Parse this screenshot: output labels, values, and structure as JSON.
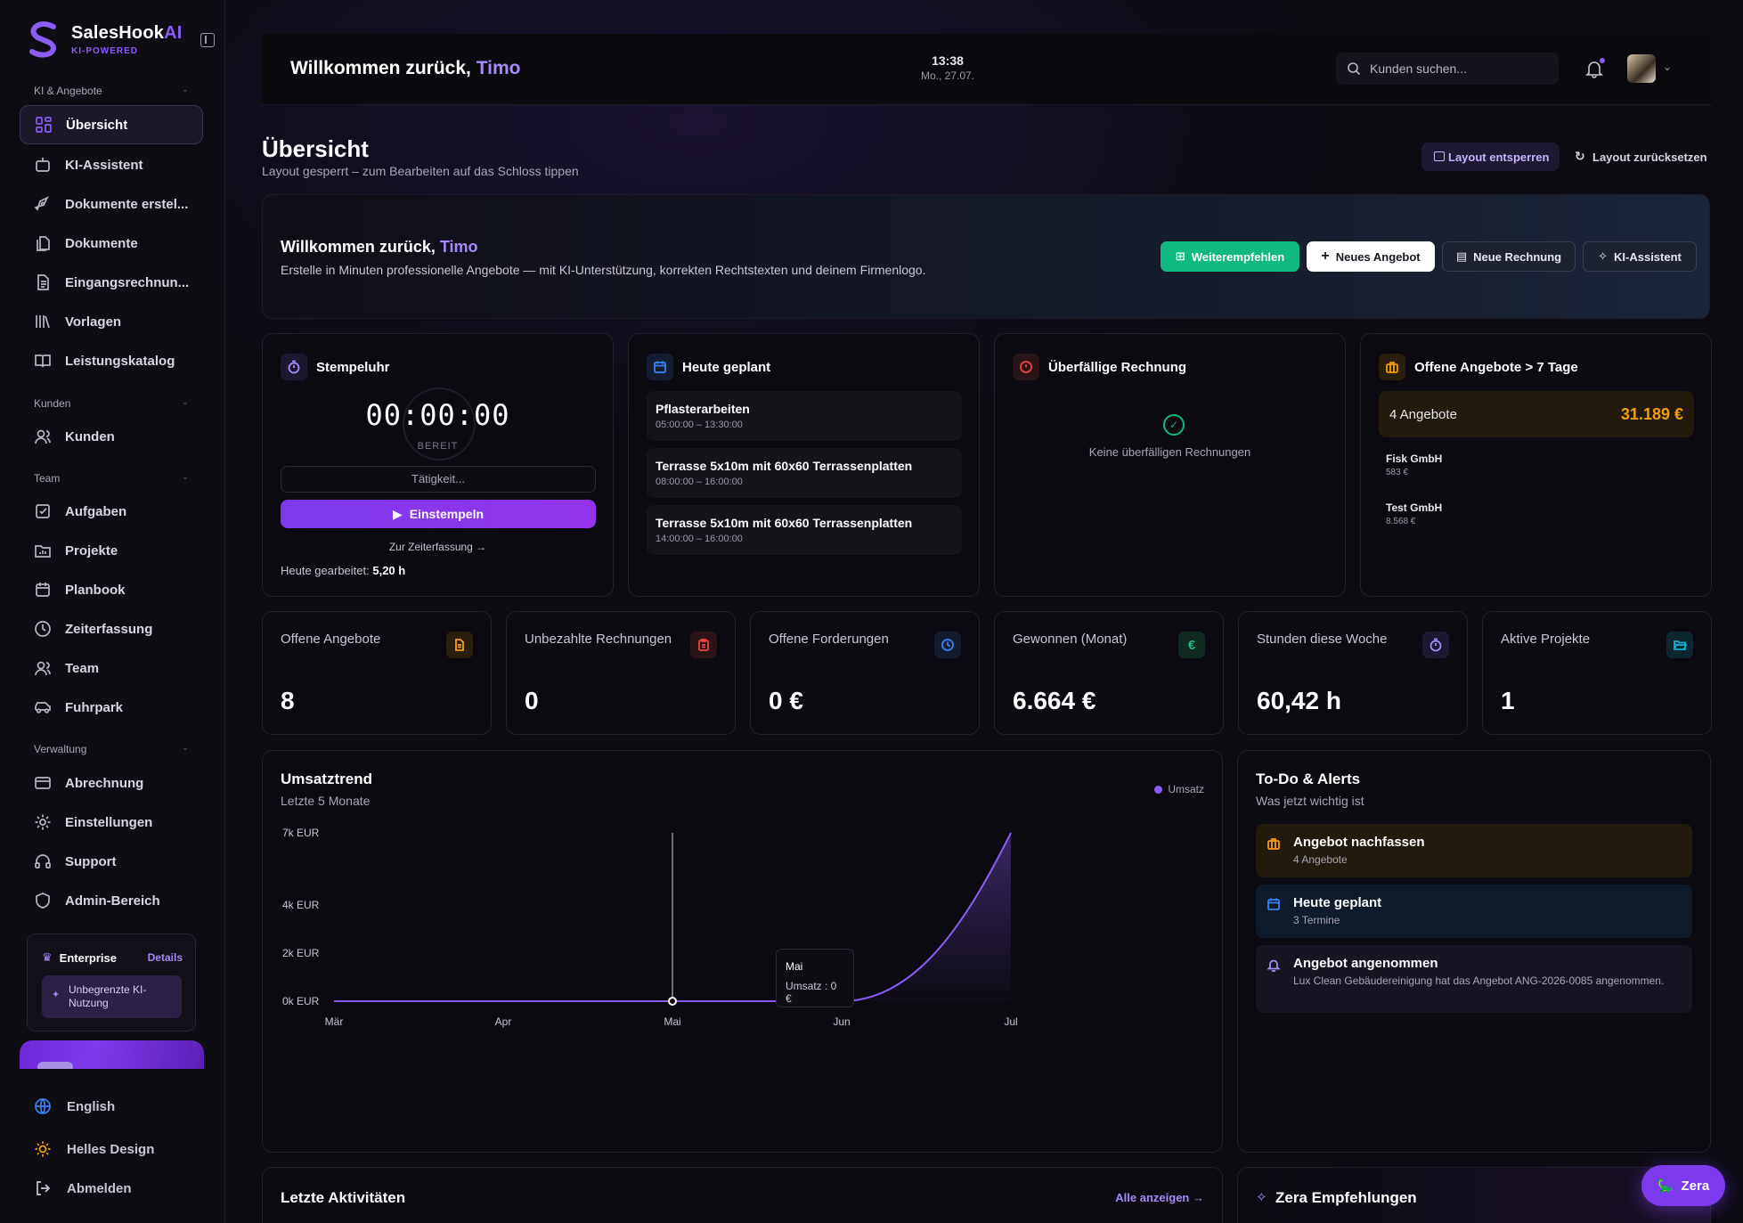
{
  "brand": {
    "name_main": "SalesHook",
    "name_ai": "AI",
    "tagline": "KI-POWERED"
  },
  "sidebar": {
    "sections": [
      {
        "label": "KI & Angebote"
      },
      {
        "label": "Kunden"
      },
      {
        "label": "Team"
      },
      {
        "label": "Verwaltung"
      }
    ],
    "items": [
      {
        "label": "Übersicht",
        "icon": "grid-icon"
      },
      {
        "label": "KI-Assistent",
        "icon": "robot-icon"
      },
      {
        "label": "Dokumente erstel...",
        "icon": "pen-tool-icon"
      },
      {
        "label": "Dokumente",
        "icon": "files-icon"
      },
      {
        "label": "Eingangsrechnun...",
        "icon": "receipt-icon"
      },
      {
        "label": "Vorlagen",
        "icon": "library-icon"
      },
      {
        "label": "Leistungskatalog",
        "icon": "book-icon"
      },
      {
        "label": "Kunden",
        "icon": "users-icon"
      },
      {
        "label": "Aufgaben",
        "icon": "checkbox-icon"
      },
      {
        "label": "Projekte",
        "icon": "folder-chart-icon"
      },
      {
        "label": "Planbook",
        "icon": "calendar-icon"
      },
      {
        "label": "Zeiterfassung",
        "icon": "clock-icon"
      },
      {
        "label": "Team",
        "icon": "team-icon"
      },
      {
        "label": "Fuhrpark",
        "icon": "car-icon"
      },
      {
        "label": "Abrechnung",
        "icon": "card-icon"
      },
      {
        "label": "Einstellungen",
        "icon": "gear-icon"
      },
      {
        "label": "Support",
        "icon": "headset-icon"
      },
      {
        "label": "Admin-Bereich",
        "icon": "shield-icon"
      }
    ],
    "enterprise": {
      "title": "Enterprise",
      "details": "Details",
      "feature": "Unbegrenzte KI-Nutzung"
    },
    "footer": {
      "language": "English",
      "theme": "Helles Design",
      "logout": "Abmelden"
    }
  },
  "topbar": {
    "welcome_prefix": "Willkommen zurück, ",
    "user_name": "Timo",
    "time": "13:38",
    "date": "Mo., 27.07.",
    "search_placeholder": "Kunden suchen..."
  },
  "page": {
    "title": "Übersicht",
    "subtitle": "Layout gesperrt – zum Bearbeiten auf das Schloss tippen",
    "unlock_label": "Layout entsperren",
    "reset_label": "Layout zurücksetzen"
  },
  "hero": {
    "title_prefix": "Willkommen zurück, ",
    "user_name": "Timo",
    "text": "Erstelle in Minuten professionelle Angebote — mit KI-Unterstützung, korrekten Rechtstexten und deinem Firmenlogo.",
    "buttons": {
      "recommend": "Weiterempfehlen",
      "new_offer": "Neues Angebot",
      "new_invoice": "Neue Rechnung",
      "assistant": "KI-Assistent"
    }
  },
  "stempeluhr": {
    "title": "Stempeluhr",
    "timer": "00:00:00",
    "status": "BEREIT",
    "activity_placeholder": "Tätigkeit...",
    "button": "Einstempeln",
    "link": "Zur Zeiterfassung →",
    "worked_label": "Heute gearbeitet: ",
    "worked_value": "5,20 h"
  },
  "heute": {
    "title": "Heute geplant",
    "items": [
      {
        "title": "Pflasterarbeiten",
        "time": "05:00:00 – 13:30:00"
      },
      {
        "title": "Terrasse 5x10m mit 60x60 Terrassenplatten",
        "time": "08:00:00 – 16:00:00"
      },
      {
        "title": "Terrasse 5x10m mit 60x60 Terrassenplatten",
        "time": "14:00:00 – 16:00:00"
      }
    ]
  },
  "ueberfaellig": {
    "title": "Überfällige Rechnung",
    "empty": "Keine überfälligen Rechnungen"
  },
  "offene_alt": {
    "title": "Offene Angebote > 7 Tage",
    "count_label": "4 Angebote",
    "total": "31.189 €",
    "customers": [
      {
        "name": "Fisk GmbH",
        "value": "583 €"
      },
      {
        "name": "Test GmbH",
        "value": "8.568 €"
      }
    ]
  },
  "kpis": [
    {
      "label": "Offene Angebote",
      "value": "8",
      "icon": "document-icon",
      "color": "#f59e0b"
    },
    {
      "label": "Unbezahlte Rechnungen",
      "value": "0",
      "icon": "clipboard-icon",
      "color": "#ef4444"
    },
    {
      "label": "Offene Forderungen",
      "value": "0 €",
      "icon": "clock-icon",
      "color": "#3b82f6"
    },
    {
      "label": "Gewonnen (Monat)",
      "value": "6.664 €",
      "icon": "euro-icon",
      "color": "#10b981"
    },
    {
      "label": "Stunden diese Woche",
      "value": "60,42 h",
      "icon": "stopwatch-icon",
      "color": "#8b5cf6"
    },
    {
      "label": "Aktive Projekte",
      "value": "1",
      "icon": "folder-open-icon",
      "color": "#06b6d4"
    }
  ],
  "chart_data": {
    "type": "area",
    "title": "Umsatztrend",
    "subtitle": "Letzte 5 Monate",
    "categories": [
      "Mär",
      "Apr",
      "Mai",
      "Jun",
      "Jul"
    ],
    "series": [
      {
        "name": "Umsatz",
        "values": [
          0,
          0,
          0,
          0,
          7000
        ],
        "color": "#8b5cf6"
      }
    ],
    "y_ticks": [
      "0k EUR",
      "2k EUR",
      "4k EUR",
      "7k EUR"
    ],
    "y_tick_values": [
      0,
      2000,
      4000,
      7000
    ],
    "ylim": [
      0,
      7000
    ],
    "legend": "top-right",
    "grid": false,
    "tooltip": {
      "label": "Mai",
      "text": "Umsatz : 0 €"
    }
  },
  "todo": {
    "title": "To-Do & Alerts",
    "subtitle": "Was jetzt wichtig ist",
    "items": [
      {
        "title": "Angebot nachfassen",
        "sub": "4 Angebote",
        "icon": "briefcase-icon"
      },
      {
        "title": "Heute geplant",
        "sub": "3 Termine",
        "icon": "calendar-icon"
      },
      {
        "title": "Angebot angenommen",
        "sub": "Lux Clean Gebäudereinigung hat das Angebot ANG-2026-0085 angenommen.",
        "icon": "bell-icon"
      }
    ]
  },
  "activities": {
    "title": "Letzte Aktivitäten",
    "link": "Alle anzeigen →"
  },
  "zera_reco": {
    "title": "Zera Empfehlungen"
  },
  "zera_button": "Zera"
}
